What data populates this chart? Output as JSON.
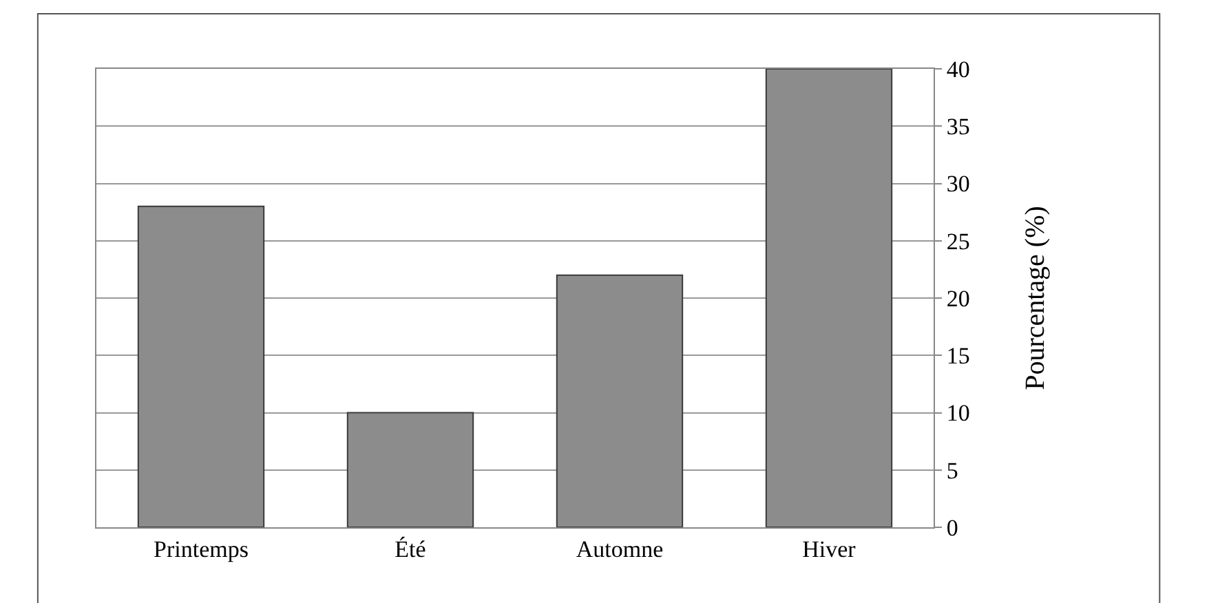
{
  "chart_data": {
    "type": "bar",
    "ylabel": "Pourcentage (%)",
    "categories": [
      "Printemps",
      "Été",
      "Automne",
      "Hiver"
    ],
    "values": [
      28,
      10,
      22,
      40
    ],
    "color": "#8c8c8c",
    "ylim": [
      0,
      40
    ],
    "yticks": [
      0,
      5,
      10,
      15,
      20,
      25,
      30,
      35,
      40
    ],
    "grid": "y"
  }
}
